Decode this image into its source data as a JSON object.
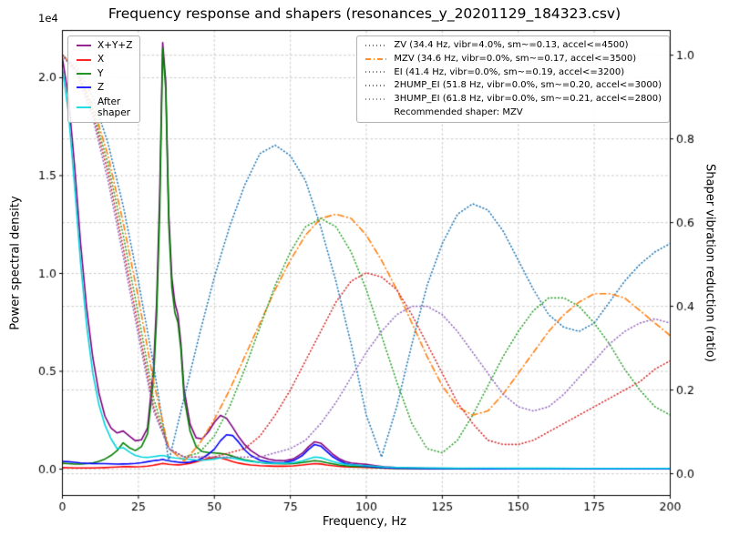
{
  "chart_data": {
    "type": "line",
    "title": "Frequency response and shapers (resonances_y_20201129_184323.csv)",
    "xlabel": "Frequency, Hz",
    "ylabel_left": "Power spectral density",
    "ylabel_right": "Shaper vibration reduction (ratio)",
    "xlim": [
      0,
      200
    ],
    "x_ticks": [
      0,
      25,
      50,
      75,
      100,
      125,
      150,
      175,
      200
    ],
    "x_tick_labels": [
      "0",
      "25",
      "50",
      "75",
      "100",
      "125",
      "150",
      "175",
      "200"
    ],
    "left_axis": {
      "lim": [
        -1345,
        22415
      ],
      "ticks": [
        0,
        5000,
        10000,
        15000,
        20000
      ],
      "tick_labels": [
        "0.0",
        "0.5",
        "1.0",
        "1.5",
        "2.0"
      ],
      "offset_text": "1e4"
    },
    "right_axis": {
      "lim": [
        -0.052,
        1.059
      ],
      "ticks": [
        0,
        0.2,
        0.4,
        0.6,
        0.8,
        1.0
      ],
      "tick_labels": [
        "0.0",
        "0.2",
        "0.4",
        "0.6",
        "0.8",
        "1.0"
      ]
    },
    "grid": true,
    "grid_color": "#c3c3c3",
    "x_grids": {
      "psd": [
        0,
        2,
        4,
        6,
        8,
        10,
        12,
        14,
        16,
        18,
        20,
        22,
        24,
        26,
        28,
        30,
        31,
        32,
        33,
        34,
        35,
        36,
        37,
        38,
        39,
        40,
        42,
        44,
        46,
        48,
        50,
        52,
        54,
        56,
        58,
        60,
        62,
        65,
        68,
        70,
        73,
        76,
        79,
        81,
        83,
        85,
        87,
        89,
        91,
        93,
        95,
        98,
        100,
        103,
        106,
        110,
        115,
        120,
        130,
        140,
        150,
        160,
        170,
        180,
        190,
        200
      ],
      "shaper": [
        0,
        5,
        10,
        15,
        20,
        25,
        30,
        35,
        40,
        45,
        50,
        55,
        60,
        65,
        70,
        75,
        80,
        85,
        90,
        95,
        100,
        105,
        110,
        115,
        120,
        125,
        130,
        135,
        140,
        145,
        150,
        155,
        160,
        165,
        170,
        175,
        180,
        185,
        190,
        195,
        200
      ]
    },
    "series": [
      {
        "name": "X+Y+Z",
        "legend": "X+Y+Z",
        "axis": "left",
        "x_grid": "psd",
        "color": "#800080",
        "style": "solid",
        "y": [
          21000,
          19000,
          15500,
          11500,
          8200,
          5700,
          3900,
          2700,
          2100,
          1850,
          1950,
          1700,
          1450,
          1500,
          2100,
          5200,
          8500,
          14000,
          21800,
          19800,
          13000,
          9800,
          8500,
          7900,
          6400,
          4100,
          2300,
          1600,
          1550,
          1900,
          2400,
          2750,
          2600,
          2150,
          1650,
          1250,
          950,
          650,
          500,
          450,
          430,
          520,
          820,
          1150,
          1400,
          1330,
          1060,
          760,
          540,
          400,
          320,
          270,
          240,
          180,
          120,
          80,
          55,
          45,
          35,
          30,
          30,
          30,
          30,
          30,
          30,
          30
        ]
      },
      {
        "name": "X",
        "legend": "X",
        "axis": "left",
        "x_grid": "psd",
        "color": "#ff0000",
        "style": "solid",
        "y": [
          80,
          70,
          65,
          60,
          60,
          65,
          70,
          80,
          95,
          110,
          130,
          125,
          120,
          130,
          155,
          200,
          230,
          260,
          290,
          270,
          250,
          235,
          225,
          220,
          230,
          250,
          300,
          380,
          470,
          550,
          600,
          570,
          490,
          390,
          310,
          255,
          215,
          180,
          160,
          150,
          150,
          165,
          210,
          250,
          285,
          265,
          215,
          175,
          145,
          125,
          110,
          95,
          90,
          70,
          55,
          42,
          35,
          30,
          25,
          22,
          20,
          20,
          20,
          20,
          20,
          20
        ]
      },
      {
        "name": "Y",
        "legend": "Y",
        "axis": "left",
        "x_grid": "psd",
        "color": "#008000",
        "style": "solid",
        "y": [
          300,
          280,
          260,
          260,
          280,
          320,
          400,
          520,
          700,
          950,
          1350,
          1100,
          950,
          1150,
          1800,
          4600,
          7800,
          13000,
          21500,
          19400,
          12500,
          9300,
          8000,
          7500,
          6100,
          3700,
          1950,
          1150,
          900,
          850,
          830,
          800,
          760,
          660,
          560,
          480,
          420,
          340,
          300,
          280,
          270,
          290,
          340,
          390,
          430,
          400,
          330,
          270,
          215,
          175,
          150,
          130,
          120,
          90,
          65,
          45,
          35,
          28,
          22,
          20,
          20,
          20,
          20,
          20,
          20,
          20
        ]
      },
      {
        "name": "Z",
        "legend": "Z",
        "axis": "left",
        "x_grid": "psd",
        "color": "#0000ff",
        "style": "solid",
        "y": [
          400,
          380,
          350,
          320,
          300,
          290,
          285,
          280,
          270,
          260,
          265,
          275,
          295,
          330,
          380,
          430,
          450,
          470,
          500,
          460,
          430,
          400,
          380,
          360,
          345,
          335,
          360,
          430,
          560,
          760,
          1020,
          1450,
          1760,
          1720,
          1380,
          980,
          700,
          460,
          360,
          330,
          340,
          430,
          700,
          1010,
          1260,
          1180,
          900,
          630,
          440,
          310,
          235,
          175,
          145,
          105,
          75,
          52,
          40,
          32,
          26,
          22,
          20,
          20,
          20,
          20,
          20,
          20
        ]
      },
      {
        "name": "After shaper",
        "legend": "After\nshaper",
        "axis": "left",
        "x_grid": "psd",
        "color": "#00d5dd",
        "style": "solid",
        "y": [
          20500,
          18200,
          14500,
          10500,
          7300,
          4900,
          3300,
          2250,
          1550,
          1050,
          1100,
          880,
          700,
          620,
          600,
          640,
          660,
          690,
          700,
          665,
          625,
          595,
          575,
          560,
          545,
          530,
          500,
          470,
          460,
          480,
          520,
          575,
          600,
          560,
          500,
          440,
          390,
          340,
          310,
          300,
          300,
          330,
          420,
          530,
          620,
          590,
          490,
          390,
          310,
          255,
          220,
          190,
          175,
          140,
          110,
          85,
          70,
          60,
          52,
          48,
          45,
          42,
          40,
          40,
          40,
          40
        ]
      },
      {
        "name": "ZV",
        "legend": "ZV (34.4 Hz, vibr=4.0%, sm~=0.13, accel<=4500)",
        "axis": "right",
        "x_grid": "shaper",
        "color": "#1f77b4",
        "style": "dotted",
        "y": [
          1.0,
          0.97,
          0.9,
          0.79,
          0.64,
          0.46,
          0.26,
          0.03,
          0.18,
          0.33,
          0.47,
          0.59,
          0.69,
          0.765,
          0.785,
          0.76,
          0.7,
          0.59,
          0.46,
          0.31,
          0.14,
          0.04,
          0.16,
          0.31,
          0.45,
          0.55,
          0.62,
          0.645,
          0.63,
          0.58,
          0.51,
          0.44,
          0.38,
          0.35,
          0.34,
          0.36,
          0.41,
          0.46,
          0.5,
          0.53,
          0.55
        ]
      },
      {
        "name": "MZV",
        "legend": "MZV (34.6 Hz, vibr=0.0%, sm~=0.17, accel<=3500)",
        "axis": "right",
        "x_grid": "shaper",
        "color": "#ff7f0e",
        "style": "dashdot",
        "y": [
          1.0,
          0.96,
          0.88,
          0.76,
          0.6,
          0.42,
          0.22,
          0.06,
          0.03,
          0.07,
          0.13,
          0.2,
          0.28,
          0.36,
          0.44,
          0.51,
          0.57,
          0.61,
          0.62,
          0.61,
          0.57,
          0.51,
          0.44,
          0.36,
          0.28,
          0.21,
          0.16,
          0.14,
          0.15,
          0.19,
          0.24,
          0.29,
          0.34,
          0.38,
          0.41,
          0.43,
          0.43,
          0.42,
          0.39,
          0.36,
          0.33
        ]
      },
      {
        "name": "EI",
        "legend": "EI (41.4 Hz, vibr=0.0%, sm~=0.19, accel<=3200)",
        "axis": "right",
        "x_grid": "shaper",
        "color": "#2ca02c",
        "style": "dotted",
        "y": [
          1.0,
          0.96,
          0.87,
          0.74,
          0.57,
          0.38,
          0.18,
          0.06,
          0.04,
          0.05,
          0.09,
          0.16,
          0.25,
          0.35,
          0.45,
          0.53,
          0.59,
          0.61,
          0.59,
          0.53,
          0.44,
          0.33,
          0.22,
          0.12,
          0.06,
          0.05,
          0.08,
          0.14,
          0.21,
          0.28,
          0.34,
          0.39,
          0.42,
          0.42,
          0.4,
          0.36,
          0.31,
          0.25,
          0.2,
          0.16,
          0.14
        ]
      },
      {
        "name": "2HUMP_EI",
        "legend": "2HUMP_EI (51.8 Hz, vibr=0.0%, sm~=0.20, accel<=3000)",
        "axis": "right",
        "x_grid": "shaper",
        "color": "#d62728",
        "style": "dotted",
        "y": [
          1.0,
          0.96,
          0.86,
          0.72,
          0.54,
          0.35,
          0.16,
          0.06,
          0.04,
          0.04,
          0.04,
          0.05,
          0.06,
          0.09,
          0.14,
          0.2,
          0.27,
          0.34,
          0.41,
          0.46,
          0.48,
          0.47,
          0.44,
          0.38,
          0.31,
          0.24,
          0.17,
          0.12,
          0.08,
          0.07,
          0.07,
          0.08,
          0.1,
          0.12,
          0.14,
          0.16,
          0.18,
          0.2,
          0.22,
          0.25,
          0.27
        ]
      },
      {
        "name": "3HUMP_EI",
        "legend": "3HUMP_EI (61.8 Hz, vibr=0.0%, sm~=0.21, accel<=2800)",
        "axis": "right",
        "x_grid": "shaper",
        "color": "#9467bd",
        "style": "dotted",
        "y": [
          1.0,
          0.95,
          0.85,
          0.7,
          0.52,
          0.33,
          0.15,
          0.06,
          0.04,
          0.04,
          0.04,
          0.04,
          0.04,
          0.04,
          0.05,
          0.06,
          0.08,
          0.12,
          0.17,
          0.23,
          0.29,
          0.34,
          0.38,
          0.4,
          0.4,
          0.38,
          0.34,
          0.29,
          0.24,
          0.19,
          0.16,
          0.15,
          0.16,
          0.19,
          0.23,
          0.27,
          0.31,
          0.34,
          0.36,
          0.37,
          0.36
        ]
      }
    ],
    "legend_left_series": [
      "X+Y+Z",
      "X",
      "Y",
      "Z",
      "After shaper"
    ],
    "legend_right_series": [
      "ZV",
      "MZV",
      "EI",
      "2HUMP_EI",
      "3HUMP_EI"
    ],
    "legend_right_note": "Recommended shaper: MZV",
    "recommended_shaper": "MZV"
  }
}
